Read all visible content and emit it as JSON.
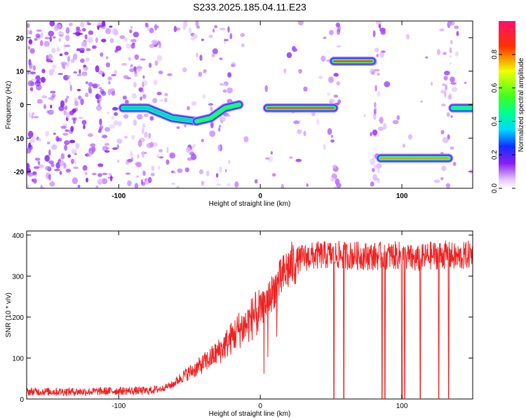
{
  "title": "S233.2025.185.04.11.E23",
  "colors": {
    "line": "#ee2222",
    "axis": "#000000",
    "background": "#ffffff"
  },
  "chart_data": [
    {
      "type": "heatmap",
      "xlabel": "Height of straight line (km)",
      "ylabel": "Frequency (Hz)",
      "xlim": [
        -165,
        150
      ],
      "ylim": [
        -25,
        25
      ],
      "xticks": [
        -100,
        0,
        100
      ],
      "xtick_labels": [
        "-100",
        "0",
        "100"
      ],
      "yticks": [
        -20,
        -10,
        0,
        10,
        20
      ],
      "ytick_labels": [
        "-20",
        "-10",
        "0",
        "10",
        "20"
      ],
      "colorbar": {
        "label": "Normalized spectral amplitude",
        "range": [
          0,
          1
        ],
        "ticks": [
          0,
          0.2,
          0.4,
          0.6,
          0.8
        ],
        "tick_labels": [
          "0.0",
          "0.2",
          "0.4",
          "0.6",
          "0.8"
        ],
        "colormap": "rainbow (white-violet-blue-cyan-green-yellow-red-magenta)"
      },
      "dominant_tones": [
        {
          "x_start": -97,
          "x_end": -45,
          "frequency": [
            -1,
            -1,
            -4,
            -5
          ],
          "amplitude": 0.4
        },
        {
          "x_start": -45,
          "x_end": -15,
          "frequency": [
            -5,
            -4,
            -1,
            0
          ],
          "amplitude": 0.55
        },
        {
          "x_start": 5,
          "x_end": 52,
          "frequency": [
            -1,
            -1
          ],
          "amplitude": 0.95
        },
        {
          "x_start": 52,
          "x_end": 79,
          "frequency": [
            13,
            13
          ],
          "amplitude": 0.95
        },
        {
          "x_start": 85,
          "x_end": 133,
          "frequency": [
            -16,
            -16
          ],
          "amplitude": 0.8
        },
        {
          "x_start": 136,
          "x_end": 150,
          "frequency": [
            -1,
            -1
          ],
          "amplitude": 0.5
        }
      ]
    },
    {
      "type": "line",
      "xlabel": "Height of straight line (km)",
      "ylabel": "SNR (10 * v/v)",
      "xlim": [
        -165,
        150
      ],
      "ylim": [
        0,
        410
      ],
      "xticks": [
        -100,
        0,
        100
      ],
      "xtick_labels": [
        "-100",
        "0",
        "100"
      ],
      "yticks": [
        0,
        100,
        200,
        300,
        400
      ],
      "ytick_labels": [
        "0",
        "100",
        "200",
        "300",
        "400"
      ],
      "series": [
        {
          "x": [
            -165,
            -140,
            -120,
            -100,
            -90,
            -80,
            -70,
            -62,
            -55,
            -45,
            -35,
            -28,
            -20,
            -15,
            -10,
            -5,
            0,
            5,
            10,
            15,
            20,
            25,
            30,
            40,
            50,
            60,
            70,
            80,
            90,
            100,
            110,
            120,
            130,
            140,
            150
          ],
          "values": [
            18,
            18,
            18,
            20,
            20,
            20,
            25,
            35,
            55,
            75,
            100,
            120,
            150,
            170,
            180,
            200,
            215,
            240,
            270,
            295,
            320,
            335,
            345,
            350,
            352,
            350,
            350,
            348,
            350,
            350,
            340,
            350,
            352,
            345,
            355
          ]
        }
      ],
      "dropouts_x": [
        52,
        59,
        86,
        88,
        100,
        102,
        113,
        126,
        133
      ]
    }
  ]
}
